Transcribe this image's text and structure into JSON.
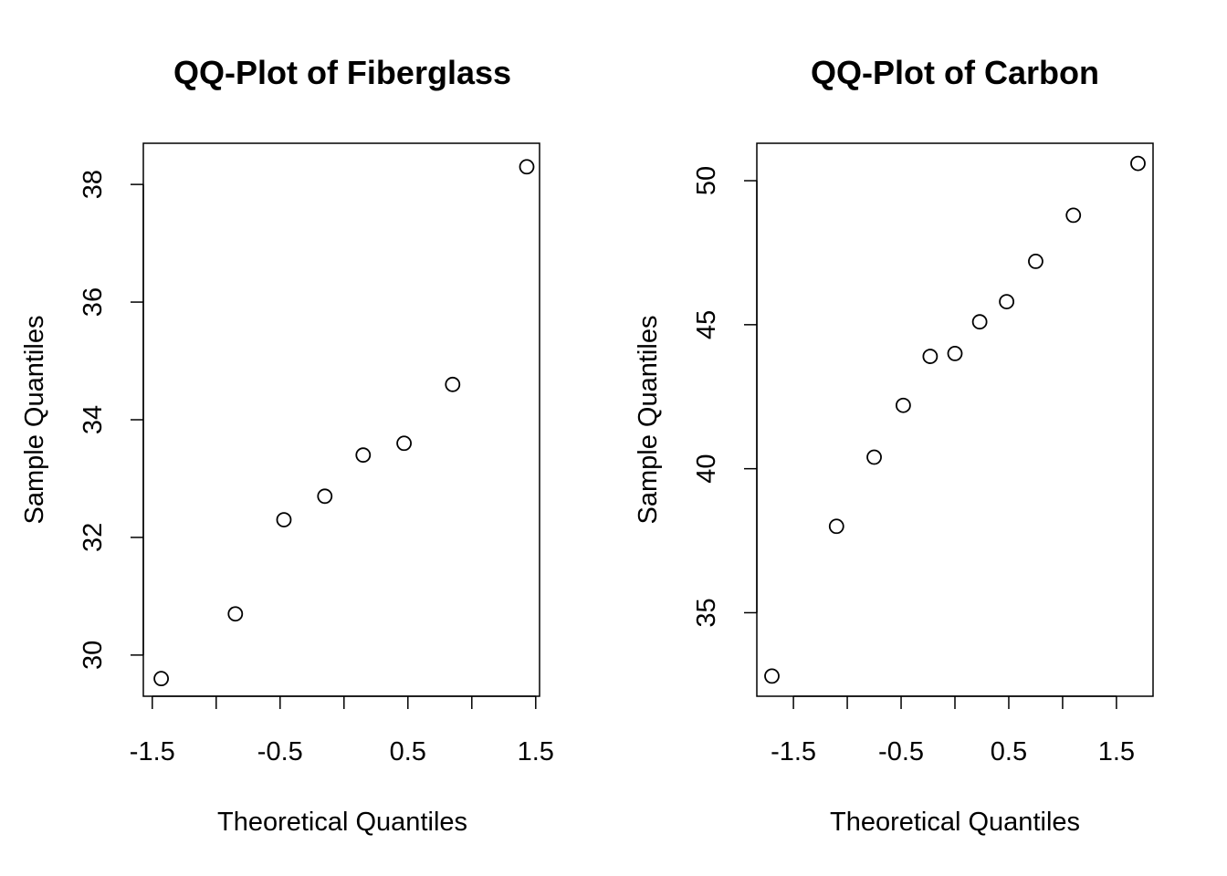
{
  "chart_data": [
    {
      "type": "scatter",
      "title": "QQ-Plot of Fiberglass",
      "xlabel": "Theoretical Quantiles",
      "ylabel": "Sample Quantiles",
      "xlim": [
        -1.57,
        1.53
      ],
      "ylim": [
        29.3,
        38.7
      ],
      "xticks": [
        -1.5,
        -1.0,
        -0.5,
        0.0,
        0.5,
        1.0,
        1.5
      ],
      "xtick_labels": [
        "-1.5",
        "",
        "-0.5",
        "",
        "0.5",
        "",
        "1.5"
      ],
      "yticks": [
        30,
        32,
        34,
        36,
        38
      ],
      "ytick_labels": [
        "30",
        "32",
        "34",
        "36",
        "38"
      ],
      "grid": false,
      "series": [
        {
          "x": [
            -1.43,
            -0.85,
            -0.47,
            -0.15,
            0.15,
            0.47,
            0.85,
            1.43
          ],
          "y": [
            29.6,
            30.7,
            32.3,
            32.7,
            33.4,
            33.6,
            34.6,
            38.3
          ]
        }
      ]
    },
    {
      "type": "scatter",
      "title": "QQ-Plot of Carbon",
      "xlabel": "Theoretical Quantiles",
      "ylabel": "Sample Quantiles",
      "xlim": [
        -1.84,
        1.84
      ],
      "ylim": [
        32.1,
        51.3
      ],
      "xticks": [
        -1.5,
        -1.0,
        -0.5,
        0.0,
        0.5,
        1.0,
        1.5
      ],
      "xtick_labels": [
        "-1.5",
        "",
        "-0.5",
        "",
        "0.5",
        "",
        "1.5"
      ],
      "yticks": [
        35,
        40,
        45,
        50
      ],
      "ytick_labels": [
        "35",
        "40",
        "45",
        "50"
      ],
      "grid": false,
      "series": [
        {
          "x": [
            -1.7,
            -1.1,
            -0.75,
            -0.48,
            -0.23,
            0.0,
            0.23,
            0.48,
            0.75,
            1.1,
            1.7
          ],
          "y": [
            32.8,
            38.0,
            40.4,
            42.2,
            43.9,
            44.0,
            45.1,
            45.8,
            47.2,
            48.8,
            50.6
          ]
        }
      ]
    }
  ]
}
